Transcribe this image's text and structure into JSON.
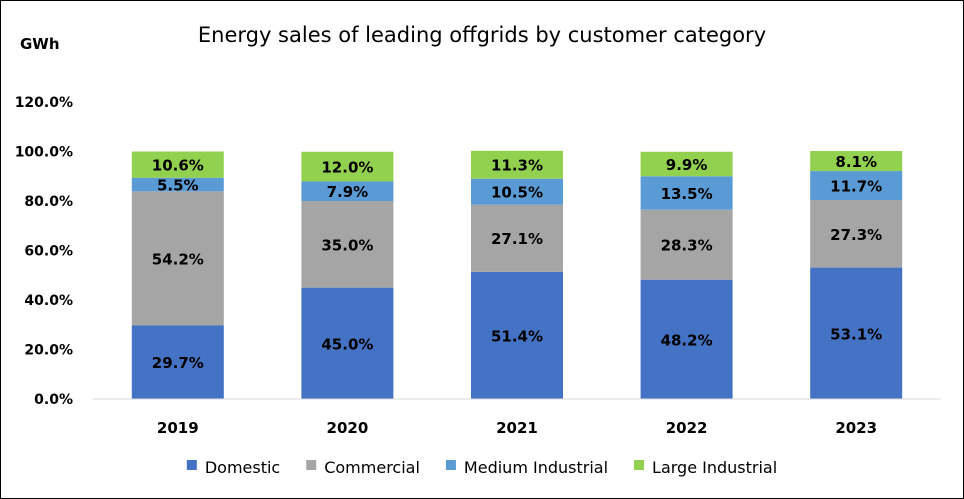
{
  "chart_data": {
    "type": "bar",
    "stacked": true,
    "title": "Energy sales of leading offgrids by customer category",
    "unit_label": "GWh",
    "categories": [
      "2019",
      "2020",
      "2021",
      "2022",
      "2023"
    ],
    "y_ticks": [
      "0.0%",
      "20.0%",
      "40.0%",
      "60.0%",
      "80.0%",
      "100.0%",
      "120.0%"
    ],
    "ylim": [
      0,
      120
    ],
    "grid": false,
    "legend_position": "bottom",
    "series": [
      {
        "name": "Domestic",
        "color": "#4472c4",
        "values": [
          29.7,
          45.0,
          51.4,
          48.2,
          53.1
        ],
        "labels": [
          "29.7%",
          "45.0%",
          "51.4%",
          "48.2%",
          "53.1%"
        ]
      },
      {
        "name": "Commercial",
        "color": "#a5a5a5",
        "values": [
          54.2,
          35.0,
          27.1,
          28.3,
          27.3
        ],
        "labels": [
          "54.2%",
          "35.0%",
          "27.1%",
          "28.3%",
          "27.3%"
        ]
      },
      {
        "name": "Medium Industrial",
        "color": "#5b9bd5",
        "values": [
          5.5,
          7.9,
          10.5,
          13.5,
          11.7
        ],
        "labels": [
          "5.5%",
          "7.9%",
          "10.5%",
          "13.5%",
          "11.7%"
        ]
      },
      {
        "name": "Large Industrial",
        "color": "#92d050",
        "values": [
          10.6,
          12.0,
          11.3,
          9.9,
          8.1
        ],
        "labels": [
          "10.6%",
          "12.0%",
          "11.3%",
          "9.9%",
          "8.1%"
        ]
      }
    ]
  }
}
